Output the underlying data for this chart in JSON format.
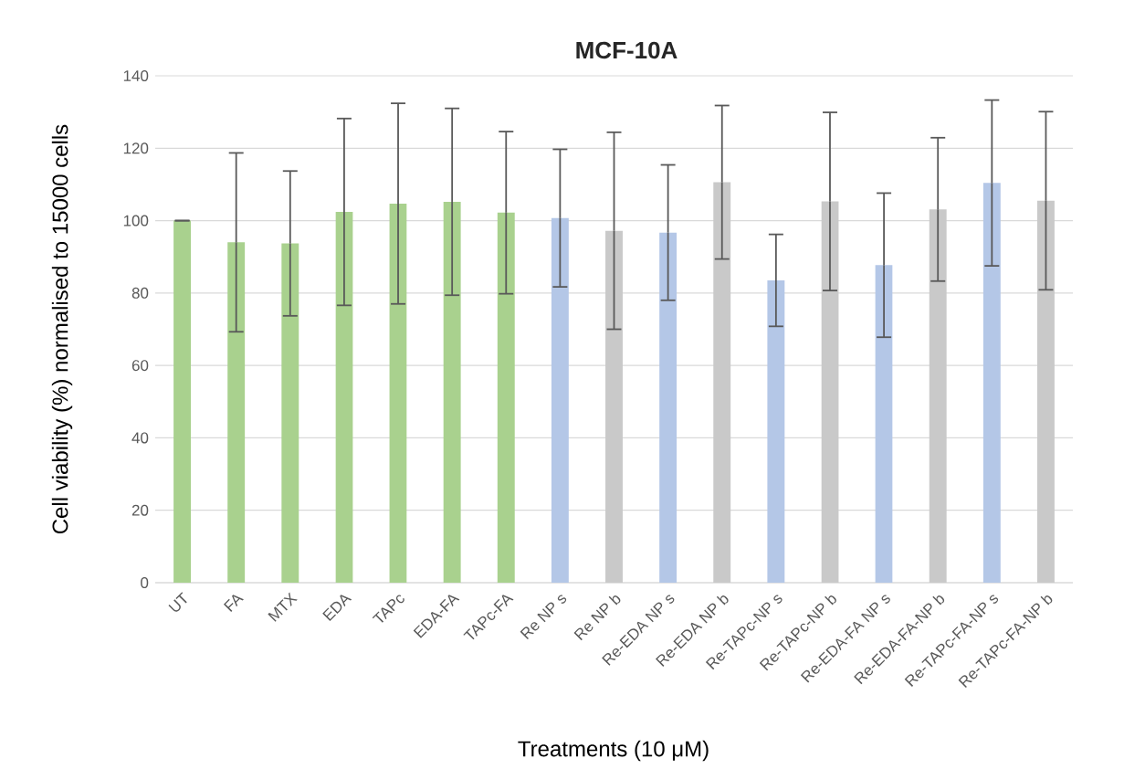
{
  "chart_data": {
    "type": "bar",
    "title": "MCF-10A",
    "xlabel": "Treatments (10 μM)",
    "ylabel": "Cell viability (%) normalised to 15000 cells",
    "categories": [
      "UT",
      "FA",
      "MTX",
      "EDA",
      "TAPc",
      "EDA-FA",
      "TAPc-FA",
      "Re NP s",
      "Re NP b",
      "Re-EDA NP s",
      "Re-EDA NP b",
      "Re-TAPc-NP s",
      "Re-TAPc-NP b",
      "Re-EDA-FA NP s",
      "Re-EDA-FA-NP b",
      "Re-TAPc-FA-NP s",
      "Re-TAPc-FA-NP b"
    ],
    "values": [
      100,
      94,
      93.7,
      102.4,
      104.7,
      105.2,
      102.2,
      100.7,
      97.2,
      96.7,
      110.6,
      83.5,
      105.3,
      87.7,
      103.1,
      110.4,
      105.5
    ],
    "errors": [
      0,
      24.7,
      20,
      25.8,
      27.7,
      25.8,
      22.4,
      19,
      27.2,
      18.7,
      21.2,
      12.7,
      24.6,
      19.9,
      19.8,
      22.9,
      24.6
    ],
    "colors": [
      "#a9d18e",
      "#a9d18e",
      "#a9d18e",
      "#a9d18e",
      "#a9d18e",
      "#a9d18e",
      "#a9d18e",
      "#b4c7e7",
      "#c9c9c9",
      "#b4c7e7",
      "#c9c9c9",
      "#b4c7e7",
      "#c9c9c9",
      "#b4c7e7",
      "#c9c9c9",
      "#b4c7e7",
      "#c9c9c9"
    ],
    "ylim": [
      0,
      140
    ],
    "yticks": [
      0,
      20,
      40,
      60,
      80,
      100,
      120,
      140
    ],
    "grid": "y"
  }
}
